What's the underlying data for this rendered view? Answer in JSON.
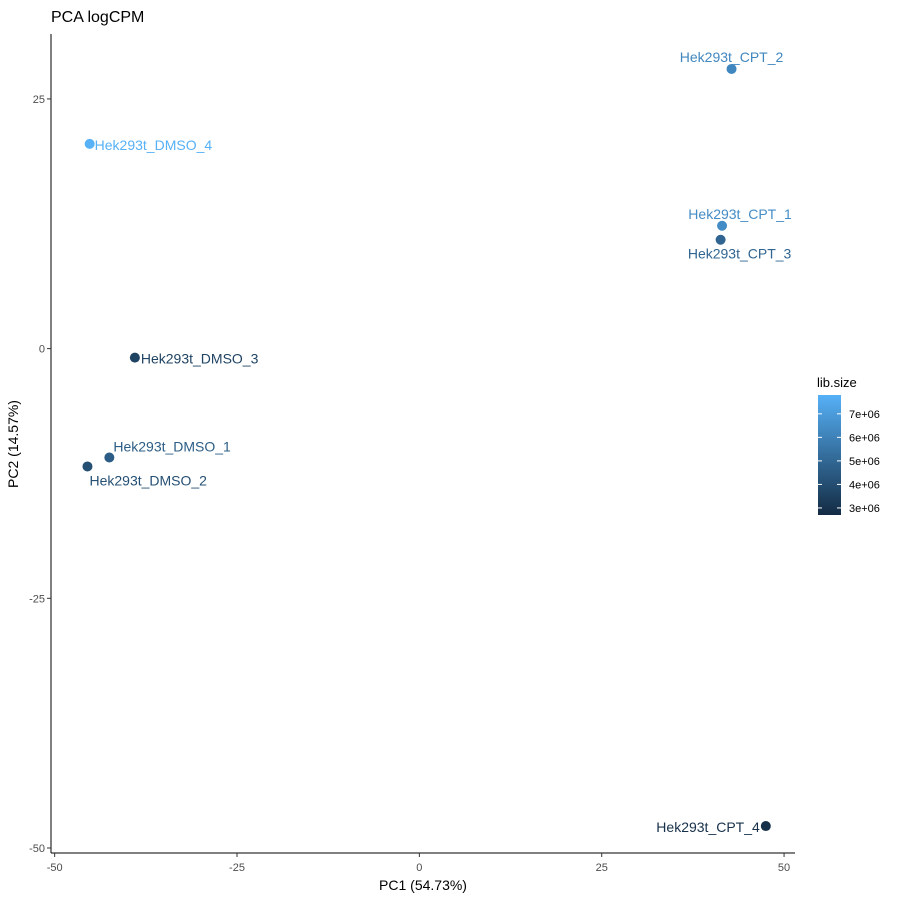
{
  "chart_data": {
    "type": "scatter",
    "title": "PCA logCPM",
    "xlabel": "PC1 (54.73%)",
    "ylabel": "PC2 (14.57%)",
    "xlim": [
      -50.5,
      51.5
    ],
    "ylim": [
      -50.5,
      31.5
    ],
    "x_ticks": [
      -50,
      -25,
      0,
      25,
      50
    ],
    "x_tick_labels": [
      "-50",
      "-25",
      "0",
      "25",
      "50"
    ],
    "y_ticks": [
      -50,
      -25,
      0,
      25
    ],
    "y_tick_labels": [
      "-50",
      "-25",
      "0",
      "25"
    ],
    "grid": false,
    "color_variable": "lib.size",
    "legend": {
      "title": "lib.size",
      "position": "right",
      "min": 2700000.0,
      "max": 7800000.0,
      "ticks": [
        3000000,
        4000000,
        5000000,
        6000000,
        7000000
      ],
      "tick_labels": [
        "3e+06",
        "4e+06",
        "5e+06",
        "6e+06",
        "7e+06"
      ],
      "low_color": "#132b43",
      "high_color": "#56b1f7"
    },
    "points": [
      {
        "label": "Hek293t_CPT_2",
        "x": 42.8,
        "y": 28.0,
        "lib_size": 6200000
      },
      {
        "label": "Hek293t_DMSO_4",
        "x": -45.2,
        "y": 20.5,
        "lib_size": 7800000
      },
      {
        "label": "Hek293t_CPT_1",
        "x": 41.5,
        "y": 12.3,
        "lib_size": 6400000
      },
      {
        "label": "Hek293t_CPT_3",
        "x": 41.3,
        "y": 10.9,
        "lib_size": 4900000
      },
      {
        "label": "Hek293t_DMSO_3",
        "x": -39.0,
        "y": -0.9,
        "lib_size": 3600000
      },
      {
        "label": "Hek293t_DMSO_1",
        "x": -42.5,
        "y": -10.9,
        "lib_size": 4600000
      },
      {
        "label": "Hek293t_DMSO_2",
        "x": -45.5,
        "y": -11.8,
        "lib_size": 4100000
      },
      {
        "label": "Hek293t_CPT_4",
        "x": 47.5,
        "y": -47.8,
        "lib_size": 2900000
      }
    ]
  }
}
